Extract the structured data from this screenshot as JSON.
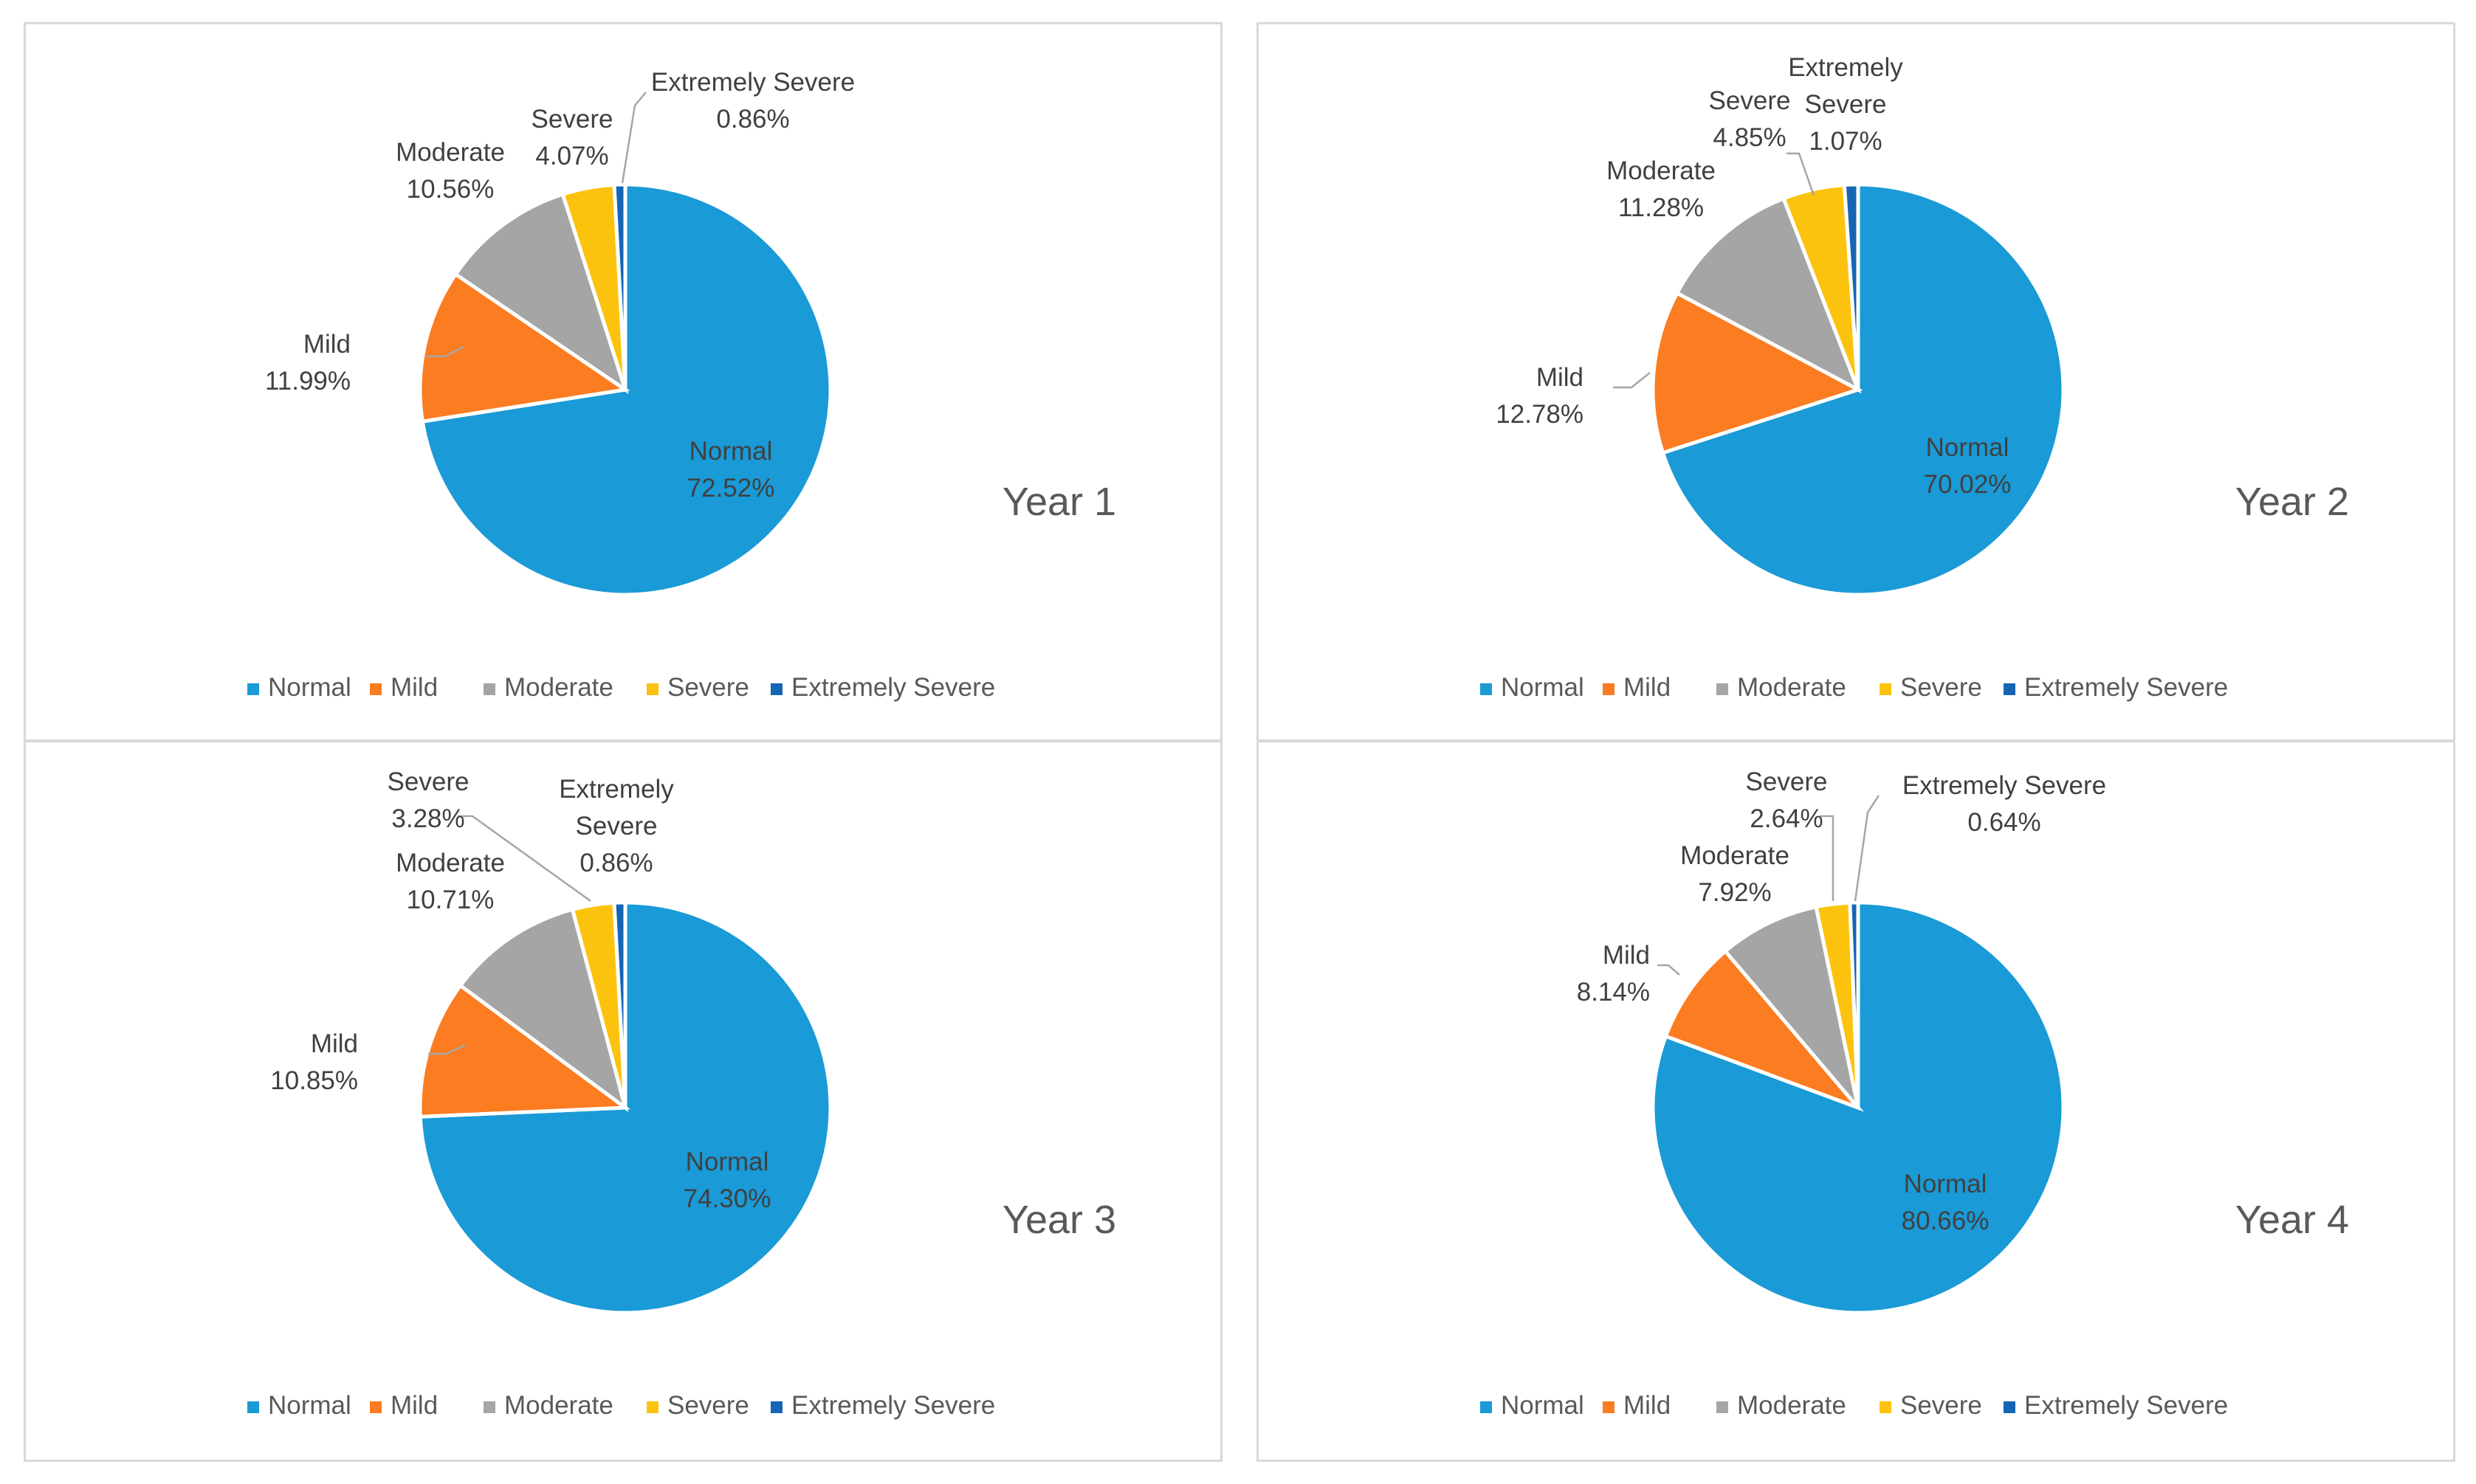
{
  "colors": {
    "Normal": "#1a9ad6",
    "Mild": "#fb7c21",
    "Moderate": "#a5a5a5",
    "Severe": "#fcc30e",
    "Extremely Severe": "#1565b4"
  },
  "chart_data": [
    {
      "type": "pie",
      "title": "Year 1",
      "legend": [
        "Normal",
        "Mild",
        "Moderate",
        "Severe",
        "Extremely Severe"
      ],
      "legend_position": "bottom",
      "slices": [
        {
          "name": "Normal",
          "value": 72.52,
          "label": "72.52%"
        },
        {
          "name": "Mild",
          "value": 11.99,
          "label": "11.99%"
        },
        {
          "name": "Moderate",
          "value": 10.56,
          "label": "10.56%"
        },
        {
          "name": "Severe",
          "value": 4.07,
          "label": "4.07%"
        },
        {
          "name": "Extremely Severe",
          "value": 0.86,
          "label": "0.86%"
        }
      ]
    },
    {
      "type": "pie",
      "title": "Year 2",
      "legend": [
        "Normal",
        "Mild",
        "Moderate",
        "Severe",
        "Extremely Severe"
      ],
      "legend_position": "bottom",
      "slices": [
        {
          "name": "Normal",
          "value": 70.02,
          "label": "70.02%"
        },
        {
          "name": "Mild",
          "value": 12.78,
          "label": "12.78%"
        },
        {
          "name": "Moderate",
          "value": 11.28,
          "label": "11.28%"
        },
        {
          "name": "Severe",
          "value": 4.85,
          "label": "4.85%"
        },
        {
          "name": "Extremely Severe",
          "value": 1.07,
          "label": "1.07%"
        }
      ]
    },
    {
      "type": "pie",
      "title": "Year 3",
      "legend": [
        "Normal",
        "Mild",
        "Moderate",
        "Severe",
        "Extremely Severe"
      ],
      "legend_position": "bottom",
      "slices": [
        {
          "name": "Normal",
          "value": 74.3,
          "label": "74.30%"
        },
        {
          "name": "Mild",
          "value": 10.85,
          "label": "10.85%"
        },
        {
          "name": "Moderate",
          "value": 10.71,
          "label": "10.71%"
        },
        {
          "name": "Severe",
          "value": 3.28,
          "label": "3.28%"
        },
        {
          "name": "Extremely Severe",
          "value": 0.86,
          "label": "0.86%"
        }
      ]
    },
    {
      "type": "pie",
      "title": "Year 4",
      "legend": [
        "Normal",
        "Mild",
        "Moderate",
        "Severe",
        "Extremely Severe"
      ],
      "legend_position": "bottom",
      "slices": [
        {
          "name": "Normal",
          "value": 80.66,
          "label": "80.66%"
        },
        {
          "name": "Mild",
          "value": 8.14,
          "label": "8.14%"
        },
        {
          "name": "Moderate",
          "value": 7.92,
          "label": "7.92%"
        },
        {
          "name": "Severe",
          "value": 2.64,
          "label": "2.64%"
        },
        {
          "name": "Extremely Severe",
          "value": 0.64,
          "label": "0.64%"
        }
      ]
    }
  ]
}
